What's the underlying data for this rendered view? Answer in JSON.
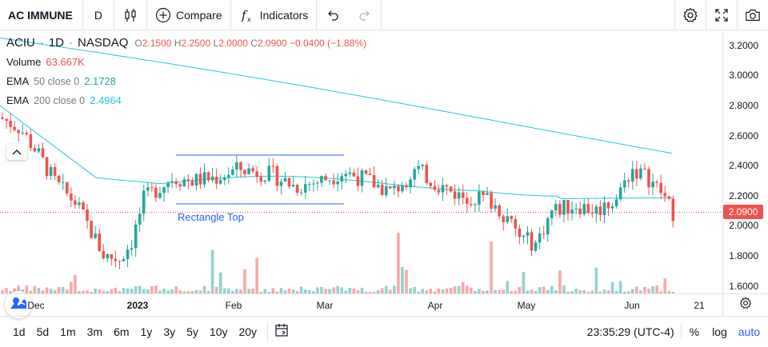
{
  "toolbar": {
    "symbol": "AC IMMUNE",
    "interval": "D",
    "compare_label": "Compare",
    "indicators_label": "Indicators"
  },
  "legend": {
    "ticker": "ACIU",
    "interval": "1D",
    "exchange": "NASDAQ",
    "open_label": "O",
    "open": "2.1500",
    "high_label": "H",
    "high": "2.2500",
    "low_label": "L",
    "low": "2.0000",
    "close_label": "C",
    "close": "2.0900",
    "change": "−0.0400 (−1.88%)",
    "volume_label": "Volume",
    "volume": "63.667K",
    "ema50_label": "EMA",
    "ema50_params": "50 close 0",
    "ema50_value": "2.1728",
    "ema200_label": "EMA",
    "ema200_params": "200 close 0",
    "ema200_value": "2.4964"
  },
  "drawing": {
    "label": "Rectangle Top"
  },
  "price_axis": {
    "ticks": [
      "3.2000",
      "3.0000",
      "2.8000",
      "2.6000",
      "2.4000",
      "2.2000",
      "2.0000",
      "1.8000",
      "1.6000"
    ],
    "last_price": "2.0900"
  },
  "time_axis": {
    "labels": [
      "Dec",
      "2023",
      "Feb",
      "Mar",
      "Apr",
      "May",
      "Jun",
      "21"
    ]
  },
  "bottombar": {
    "ranges": [
      "1d",
      "5d",
      "1m",
      "3m",
      "6m",
      "1y",
      "3y",
      "5y",
      "10y",
      "20y"
    ],
    "clock": "23:35:29 (UTC-4)",
    "percent": "%",
    "log": "log",
    "auto": "auto"
  },
  "colors": {
    "up": "#26a69a",
    "down": "#ef5350",
    "ema": "#26c6da",
    "rect": "#2962ff",
    "accent": "#2962ff"
  },
  "chart_data": {
    "type": "candlestick",
    "ylim": [
      1.55,
      3.3
    ],
    "ema50_value": 2.1728,
    "ema200_value": 2.4964,
    "last_close": 2.09
  }
}
